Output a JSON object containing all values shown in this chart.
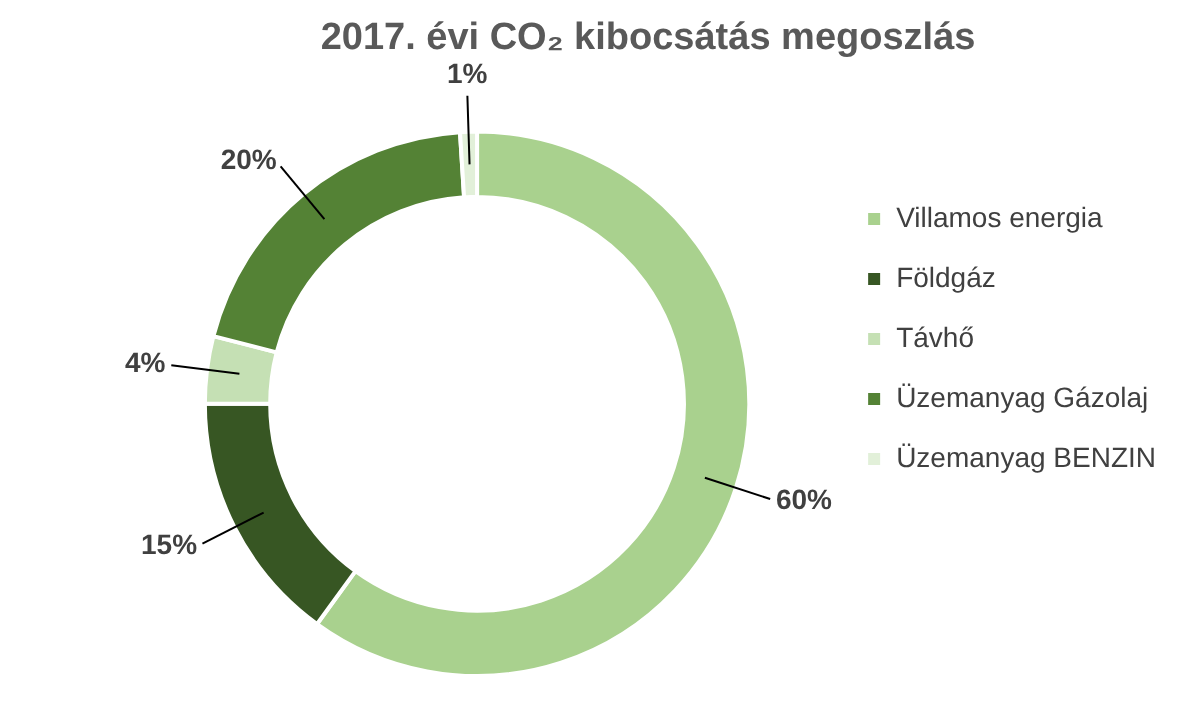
{
  "chart_data": {
    "type": "donut",
    "title": "2017. évi CO₂ kibocsátás megoszlás",
    "categories": [
      "Villamos energia",
      "Földgáz",
      "Távhő",
      "Üzemanyag Gázolaj",
      "Üzemanyag BENZIN"
    ],
    "values": [
      60,
      15,
      4,
      20,
      1
    ],
    "colors": [
      "#a9d18e",
      "#375623",
      "#c5e0b4",
      "#548235",
      "#e2f0d9"
    ],
    "value_labels": [
      "60%",
      "15%",
      "4%",
      "20%",
      "1%"
    ],
    "legend": "right"
  }
}
